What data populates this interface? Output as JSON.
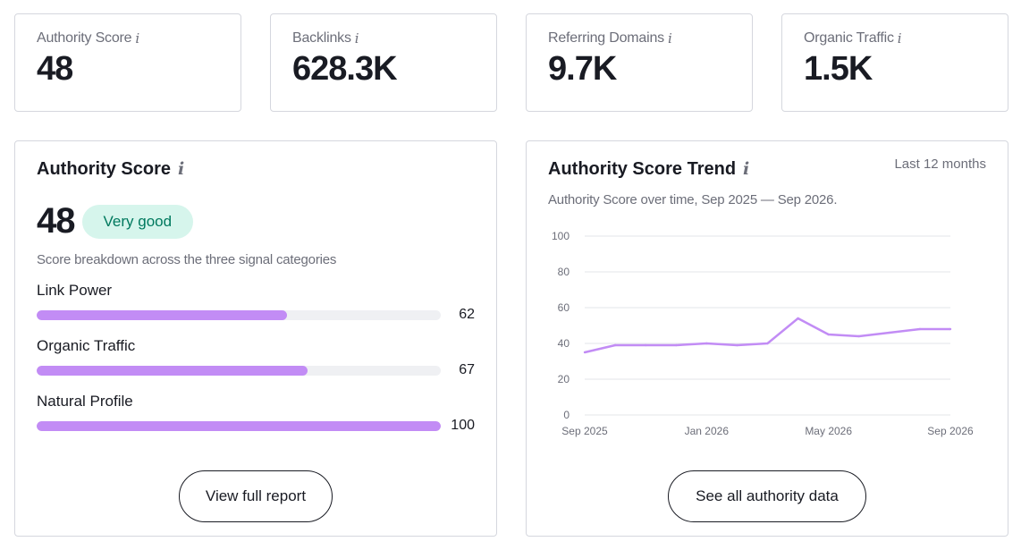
{
  "metrics": [
    {
      "label": "Authority Score",
      "value": "48"
    },
    {
      "label": "Backlinks",
      "value": "628.3K"
    },
    {
      "label": "Referring Domains",
      "value": "9.7K"
    },
    {
      "label": "Organic Traffic",
      "value": "1.5K"
    }
  ],
  "info_glyph": "i",
  "authority_panel": {
    "title": "Authority Score",
    "score": "48",
    "badge": "Very good",
    "caption": "Score breakdown across the three signal categories",
    "bars": [
      {
        "label": "Link Power",
        "value": 62,
        "value_text": "62"
      },
      {
        "label": "Organic Traffic",
        "value": 67,
        "value_text": "67"
      },
      {
        "label": "Natural Profile",
        "value": 100,
        "value_text": "100"
      }
    ],
    "button_label": "View full report"
  },
  "trend_panel": {
    "title": "Authority Score Trend",
    "period": "Last 12 months",
    "subtitle": "Authority Score over time, Sep 2025 — Sep 2026.",
    "button_label": "See all authority data"
  },
  "colors": {
    "accent_purple": "#c28cf5",
    "badge_bg": "#d6f5ec",
    "badge_text": "#00795e",
    "border": "#d5d7de"
  },
  "chart_data": {
    "type": "line",
    "title": "Authority Score Trend",
    "x": [
      "Sep 2025",
      "Oct 2025",
      "Nov 2025",
      "Dec 2025",
      "Jan 2026",
      "Feb 2026",
      "Mar 2026",
      "Apr 2026",
      "May 2026",
      "Jun 2026",
      "Jul 2026",
      "Aug 2026",
      "Sep 2026"
    ],
    "x_tick_labels": [
      "Sep 2025",
      "Jan 2026",
      "May 2026",
      "Sep 2026"
    ],
    "series": [
      {
        "values": [
          35,
          39,
          39,
          39,
          40,
          39,
          40,
          54,
          45,
          44,
          46,
          48,
          48
        ]
      }
    ],
    "y_ticks": [
      0,
      20,
      40,
      60,
      80,
      100
    ],
    "ylim": [
      0,
      100
    ],
    "grid": true
  }
}
